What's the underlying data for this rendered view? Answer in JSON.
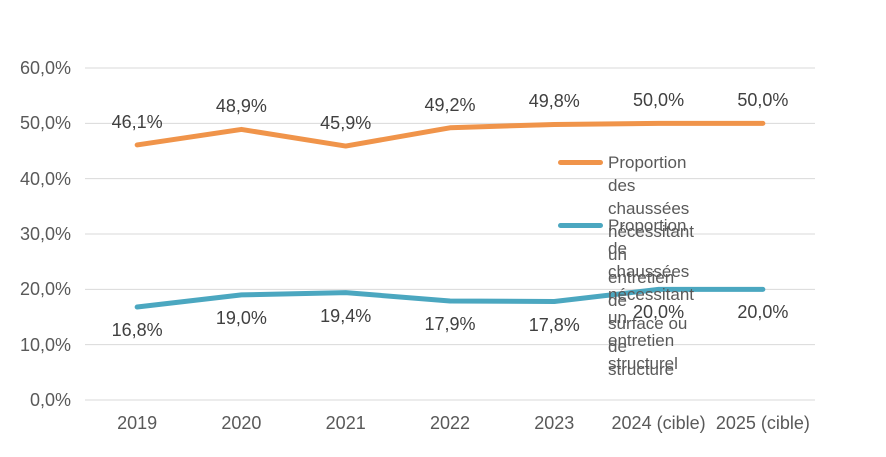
{
  "chart_data": {
    "type": "line",
    "title": "",
    "xlabel": "",
    "ylabel": "",
    "grid": "horizontal",
    "legend_position": "right-inside",
    "ylim": [
      0,
      60
    ],
    "categories": [
      "2019",
      "2020",
      "2021",
      "2022",
      "2023",
      "2024 (cible)",
      "2025 (cible)"
    ],
    "yticks": {
      "values": [
        0,
        10,
        20,
        30,
        40,
        50,
        60
      ],
      "labels": [
        "0,0%",
        "10,0%",
        "20,0%",
        "30,0%",
        "40,0%",
        "50,0%",
        "60,0%"
      ]
    },
    "series": [
      {
        "name": "Proportion des chaussées\nnécessitant un entretien de\nsurface ou de structure",
        "values": [
          46.1,
          48.9,
          45.9,
          49.2,
          49.8,
          50.0,
          50.0
        ],
        "labels": [
          "46,1%",
          "48,9%",
          "45,9%",
          "49,2%",
          "49,8%",
          "50,0%",
          "50,0%"
        ],
        "color": "#F0944A",
        "label_position": "above"
      },
      {
        "name": "Proportion de chaussées\nnécessitant un entretien structurel",
        "values": [
          16.8,
          19.0,
          19.4,
          17.9,
          17.8,
          20.0,
          20.0
        ],
        "labels": [
          "16,8%",
          "19,0%",
          "19,4%",
          "17,9%",
          "17,8%",
          "20,0%",
          "20,0%"
        ],
        "color": "#4BA7C0",
        "label_position": "below"
      }
    ]
  },
  "colors": {
    "background": "#FFFFFF",
    "grid": "#D9D9D9",
    "axis_text": "#595959",
    "data_label_text": "#404040"
  }
}
